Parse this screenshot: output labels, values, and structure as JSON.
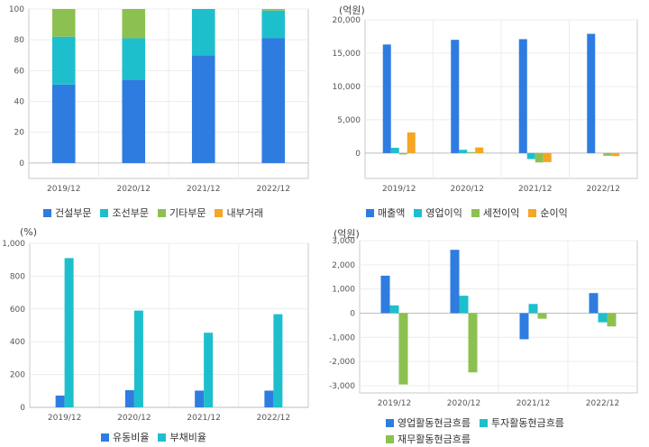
{
  "colors": {
    "blue": "#2e7ce0",
    "cyan": "#1ebfcd",
    "green": "#8cc152",
    "orange": "#f5a623"
  },
  "chart_data": [
    {
      "type": "bar",
      "stacked": true,
      "title": "",
      "unit": "",
      "categories": [
        "2019/12",
        "2020/12",
        "2021/12",
        "2022/12"
      ],
      "series": [
        {
          "name": "건설부문",
          "color": "#2e7ce0",
          "values": [
            51,
            54,
            70,
            81
          ]
        },
        {
          "name": "조선부문",
          "color": "#1ebfcd",
          "values": [
            31,
            27,
            30,
            18
          ]
        },
        {
          "name": "기타부문",
          "color": "#8cc152",
          "values": [
            18,
            19,
            0,
            1
          ]
        },
        {
          "name": "내부거래",
          "color": "#f5a623",
          "values": [
            0,
            0,
            0,
            0
          ]
        }
      ],
      "ylim": [
        -10,
        100
      ],
      "yticks": [
        0,
        20,
        40,
        60,
        80,
        100
      ],
      "ytick_labels": [
        "0",
        "20",
        "40",
        "60",
        "80",
        "100"
      ],
      "grid": true,
      "legend": "bottom"
    },
    {
      "type": "bar",
      "stacked": false,
      "title": "",
      "unit": "(억원)",
      "categories": [
        "2019/12",
        "2020/12",
        "2021/12",
        "2022/12"
      ],
      "series": [
        {
          "name": "매출액",
          "color": "#2e7ce0",
          "values": [
            16300,
            17000,
            17100,
            17900
          ]
        },
        {
          "name": "영업이익",
          "color": "#1ebfcd",
          "values": [
            800,
            500,
            -900,
            0
          ]
        },
        {
          "name": "세전이익",
          "color": "#8cc152",
          "values": [
            -200,
            150,
            -1400,
            -400
          ]
        },
        {
          "name": "순이익",
          "color": "#f5a623",
          "values": [
            3100,
            850,
            -1350,
            -450
          ]
        }
      ],
      "ylim": [
        -3800,
        20000
      ],
      "yticks": [
        0,
        5000,
        10000,
        15000,
        20000
      ],
      "ytick_labels": [
        "0",
        "5,000",
        "10,000",
        "15,000",
        "20,000"
      ],
      "grid": true,
      "legend": "bottom"
    },
    {
      "type": "bar",
      "stacked": false,
      "title": "",
      "unit": "(%)",
      "categories": [
        "2019/12",
        "2020/12",
        "2021/12",
        "2022/12"
      ],
      "series": [
        {
          "name": "유동비율",
          "color": "#2e7ce0",
          "values": [
            72,
            105,
            102,
            102
          ]
        },
        {
          "name": "부채비율",
          "color": "#1ebfcd",
          "values": [
            910,
            590,
            455,
            568
          ]
        }
      ],
      "ylim": [
        0,
        1000
      ],
      "yticks": [
        0,
        200,
        400,
        600,
        800,
        1000
      ],
      "ytick_labels": [
        "0",
        "200",
        "400",
        "600",
        "800",
        "1,000"
      ],
      "grid": true,
      "legend": "bottom"
    },
    {
      "type": "bar",
      "stacked": false,
      "title": "",
      "unit": "(억원)",
      "categories": [
        "2019/12",
        "2020/12",
        "2021/12",
        "2022/12"
      ],
      "series": [
        {
          "name": "영업활동현금흐름",
          "color": "#2e7ce0",
          "values": [
            1550,
            2620,
            -1080,
            830
          ]
        },
        {
          "name": "투자활동현금흐름",
          "color": "#1ebfcd",
          "values": [
            320,
            720,
            380,
            -380
          ]
        },
        {
          "name": "재무활동현금흐름",
          "color": "#8cc152",
          "values": [
            -2950,
            -2450,
            -230,
            -550
          ]
        }
      ],
      "ylim": [
        -3300,
        3000
      ],
      "yticks": [
        -3000,
        -2000,
        -1000,
        0,
        1000,
        2000,
        3000
      ],
      "ytick_labels": [
        "-3,000",
        "-2,000",
        "-1,000",
        "0",
        "1,000",
        "2,000",
        "3,000"
      ],
      "grid": true,
      "legend": "bottom"
    }
  ]
}
